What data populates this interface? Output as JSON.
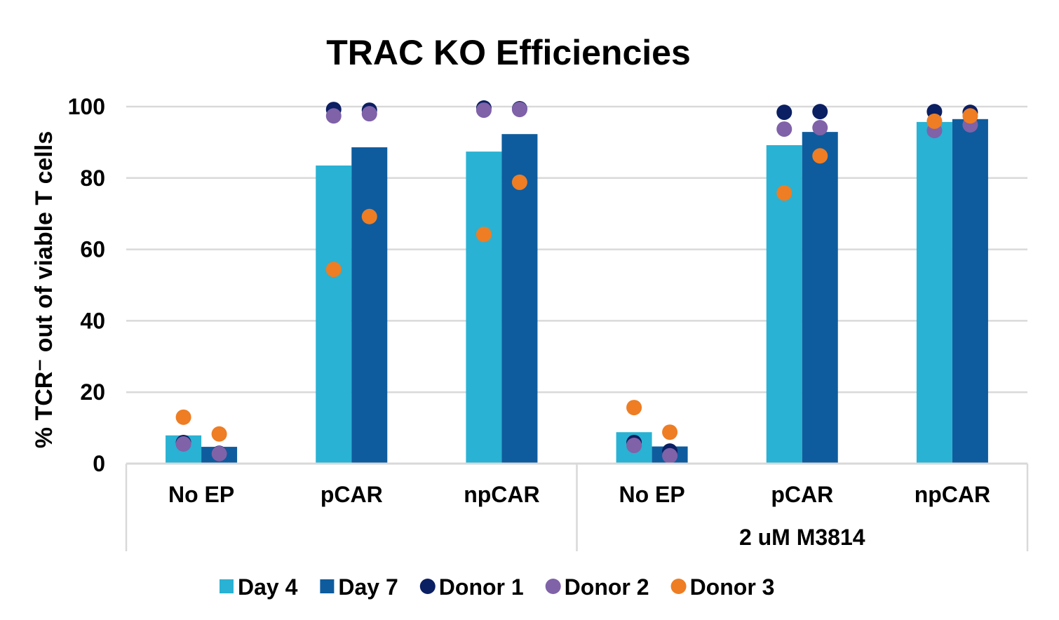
{
  "chart_data": {
    "type": "bar",
    "title": "TRAC KO Efficiencies",
    "ylabel": "% TCR⁻ out of viable T cells",
    "xlabel": "",
    "ylim": [
      0,
      100
    ],
    "yticks": [
      0,
      20,
      40,
      60,
      80,
      100
    ],
    "grid": true,
    "legend_position": "bottom",
    "categories": [
      "No EP",
      "pCAR",
      "npCAR",
      "No EP",
      "pCAR",
      "npCAR"
    ],
    "category_groups": [
      {
        "label": "",
        "categories": [
          0,
          1,
          2
        ]
      },
      {
        "label": "2 uM M3814",
        "categories": [
          3,
          4,
          5
        ]
      }
    ],
    "series": [
      {
        "name": "Day 4",
        "kind": "bar",
        "color": "#29B2D3",
        "values": [
          7.9,
          83.5,
          87.4,
          8.8,
          89.2,
          95.7
        ]
      },
      {
        "name": "Day 7",
        "kind": "bar",
        "color": "#0E5C9E",
        "values": [
          4.7,
          88.6,
          92.3,
          4.8,
          92.9,
          96.5
        ]
      }
    ],
    "points": [
      {
        "name": "Donor 1",
        "color": "#0B1F63",
        "day4": [
          5.9,
          99.2,
          99.6,
          5.9,
          98.4,
          98.6
        ],
        "day7": [
          2.9,
          99.0,
          99.4,
          3.5,
          98.6,
          98.4
        ]
      },
      {
        "name": "Donor 2",
        "color": "#7F62A8",
        "day4": [
          5.5,
          97.4,
          99.0,
          5.1,
          93.7,
          93.3
        ],
        "day7": [
          2.8,
          98.0,
          99.2,
          2.2,
          94.1,
          94.9
        ]
      },
      {
        "name": "Donor 3",
        "color": "#EE7D24",
        "day4": [
          13.0,
          54.4,
          64.2,
          15.7,
          75.8,
          95.9
        ],
        "day7": [
          8.3,
          69.2,
          78.8,
          8.8,
          86.2,
          97.4
        ]
      }
    ]
  }
}
